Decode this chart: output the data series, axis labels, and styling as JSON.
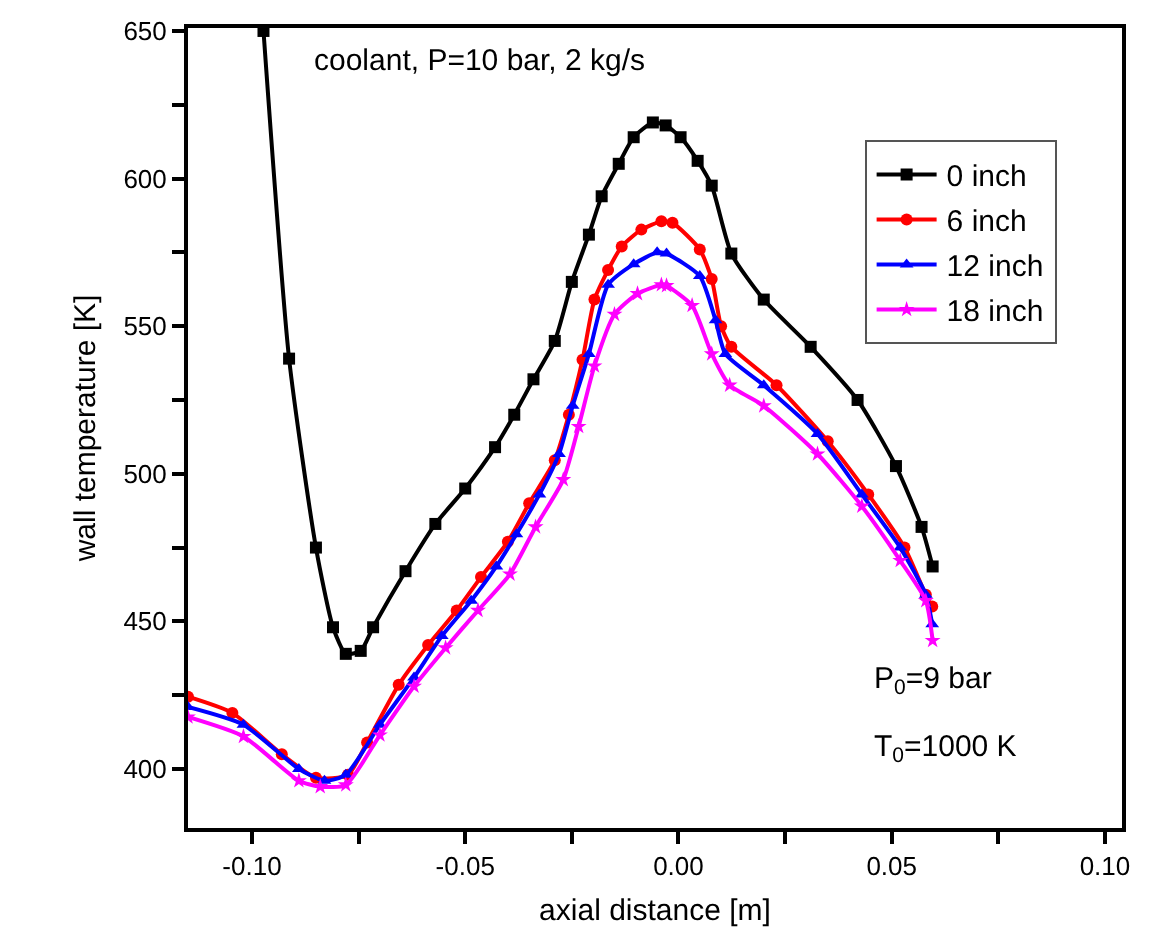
{
  "chart_data": {
    "type": "line",
    "xlabel": "axial distance [m]",
    "ylabel": "wall temperature [K]",
    "xlim": [
      -0.115,
      0.104
    ],
    "ylim": [
      380,
      651
    ],
    "xticks": [
      {
        "value": -0.1,
        "label": "-0.10"
      },
      {
        "value": -0.075,
        "label": null
      },
      {
        "value": -0.05,
        "label": "-0.05"
      },
      {
        "value": -0.025,
        "label": null
      },
      {
        "value": 0,
        "label": "0.00"
      },
      {
        "value": 0.025,
        "label": null
      },
      {
        "value": 0.05,
        "label": "0.05"
      },
      {
        "value": 0.075,
        "label": null
      },
      {
        "value": 0.1,
        "label": "0.10"
      }
    ],
    "yticks": [
      400,
      {
        "value": 425,
        "label": null
      },
      450,
      {
        "value": 475,
        "label": null
      },
      500,
      {
        "value": 525,
        "label": null
      },
      550,
      {
        "value": 575,
        "label": null
      },
      600,
      {
        "value": 625,
        "label": null
      },
      650
    ],
    "grid": false,
    "legend": "top right",
    "line_style": "solid",
    "annotations": [
      "coolant, P=10 bar, 2 kg/s",
      "P$_{0}$=9 bar",
      "T$_{0}$=1000 K"
    ],
    "series": [
      {
        "name": "0 inch",
        "color": "#000000",
        "marker": "square",
        "x": [
          -0.0973,
          -0.0913,
          -0.085,
          -0.081,
          -0.078,
          -0.0745,
          -0.0716,
          -0.064,
          -0.057,
          -0.05,
          -0.043,
          -0.0385,
          -0.034,
          -0.029,
          -0.025,
          -0.021,
          -0.018,
          -0.014,
          -0.0105,
          -0.006,
          -0.003,
          0.0005,
          0.0045,
          0.0078,
          0.0124,
          0.02,
          0.031,
          0.042,
          0.051,
          0.057,
          0.0596
        ],
        "values": [
          650,
          539,
          475,
          448,
          439,
          440,
          448,
          467,
          483,
          495,
          509,
          520,
          532,
          545,
          565,
          581,
          594,
          605,
          614,
          619,
          618,
          614,
          606,
          597.6,
          574.6,
          559,
          543,
          525,
          502.6,
          482,
          468.6
        ]
      },
      {
        "name": "6 inch",
        "color": "#ff0000",
        "marker": "circle",
        "x": [
          -0.115,
          -0.1046,
          -0.093,
          -0.085,
          -0.0775,
          -0.073,
          -0.0656,
          -0.0587,
          -0.052,
          -0.0463,
          -0.04,
          -0.035,
          -0.029,
          -0.0257,
          -0.0225,
          -0.0197,
          -0.0165,
          -0.0133,
          -0.0087,
          -0.004,
          -0.0014,
          0.005,
          0.0078,
          0.01,
          0.0124,
          0.023,
          0.035,
          0.0445,
          0.053,
          0.058,
          0.0595
        ],
        "values": [
          424.5,
          419,
          405,
          397,
          398,
          409,
          428.5,
          442,
          453.7,
          465,
          477,
          490,
          504.6,
          520,
          538.6,
          559,
          569,
          577,
          582.7,
          585.5,
          585,
          576,
          566,
          550,
          543,
          530,
          511,
          493,
          475,
          459,
          455
        ]
      },
      {
        "name": "12 inch",
        "color": "#0000ff",
        "marker": "triangle",
        "x": [
          -0.115,
          -0.102,
          -0.089,
          -0.083,
          -0.078,
          -0.07,
          -0.062,
          -0.0555,
          -0.0486,
          -0.0427,
          -0.038,
          -0.0326,
          -0.028,
          -0.0248,
          -0.021,
          -0.0165,
          -0.0105,
          -0.005,
          -0.0028,
          0.005,
          0.0087,
          0.011,
          0.02,
          0.0326,
          0.043,
          0.052,
          0.058,
          0.0595
        ],
        "values": [
          421,
          415,
          400,
          396,
          398,
          415,
          431,
          445,
          457,
          468.6,
          479.5,
          493,
          506.7,
          523,
          540.6,
          564,
          571,
          575,
          574.6,
          567,
          552,
          540.6,
          530,
          513.5,
          493,
          475,
          459,
          449
        ]
      },
      {
        "name": "18 inch",
        "color": "#ff00ff",
        "marker": "star",
        "x": [
          -0.115,
          -0.102,
          -0.089,
          -0.084,
          -0.078,
          -0.07,
          -0.062,
          -0.0546,
          -0.047,
          -0.0395,
          -0.0335,
          -0.027,
          -0.0234,
          -0.0197,
          -0.015,
          -0.0096,
          -0.004,
          -0.0028,
          0.0032,
          0.0078,
          0.012,
          0.02,
          0.0326,
          0.043,
          0.052,
          0.058,
          0.0596
        ],
        "values": [
          417.6,
          411,
          396,
          394,
          394.6,
          411.5,
          428,
          441,
          453.7,
          466,
          482,
          498,
          516,
          536.5,
          554,
          561,
          564,
          563.7,
          557,
          540.6,
          530,
          523,
          506.7,
          489,
          470.6,
          457,
          443.5
        ]
      }
    ]
  }
}
